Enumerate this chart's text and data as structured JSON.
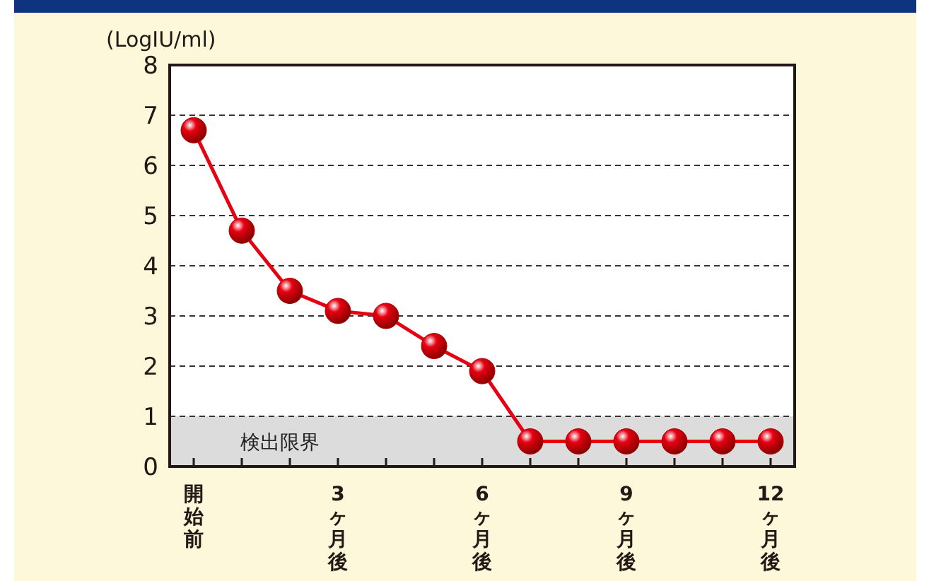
{
  "chart_data": {
    "type": "line",
    "ylabel": "(LogIU/ml)",
    "categories": [
      "開始前",
      null,
      null,
      "3ヶ月後",
      null,
      null,
      "6ヶ月後",
      null,
      null,
      "9ヶ月後",
      null,
      null,
      "12ヶ月後"
    ],
    "series": [
      {
        "color": "#e60012",
        "values": [
          6.7,
          4.7,
          3.5,
          3.1,
          3.0,
          2.4,
          1.9,
          0.5,
          0.5,
          0.5,
          0.5,
          0.5,
          0.5
        ]
      }
    ],
    "ylim": [
      0,
      8
    ],
    "yticks": [
      0,
      1,
      2,
      3,
      4,
      5,
      6,
      7,
      8
    ],
    "grid": "y",
    "marker": "circle",
    "line_style": "solid",
    "bands": [
      {
        "axis": "y",
        "from": 0,
        "to": 1,
        "label": "検出限界",
        "color": "#dcdcdc"
      }
    ]
  }
}
